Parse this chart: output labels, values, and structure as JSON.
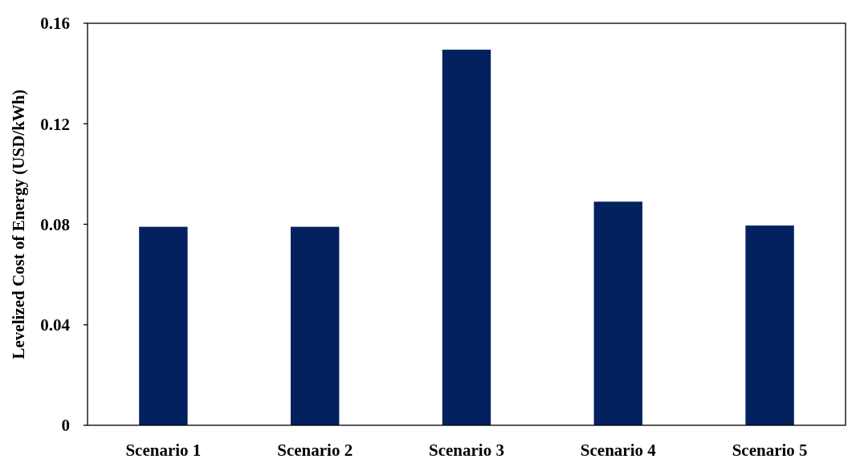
{
  "chart_data": {
    "type": "bar",
    "ylabel": "Levelized Cost of Energy (USD/kWh)",
    "categories": [
      "Scenario 1",
      "Scenario 2",
      "Scenario 3",
      "Scenario 4",
      "Scenario 5"
    ],
    "values": [
      0.079,
      0.079,
      0.1495,
      0.089,
      0.0795
    ],
    "color": "#03215f",
    "ylim": [
      0,
      0.16
    ],
    "yticks": [
      0,
      0.04,
      0.08,
      0.12,
      0.16
    ],
    "grid": false
  }
}
